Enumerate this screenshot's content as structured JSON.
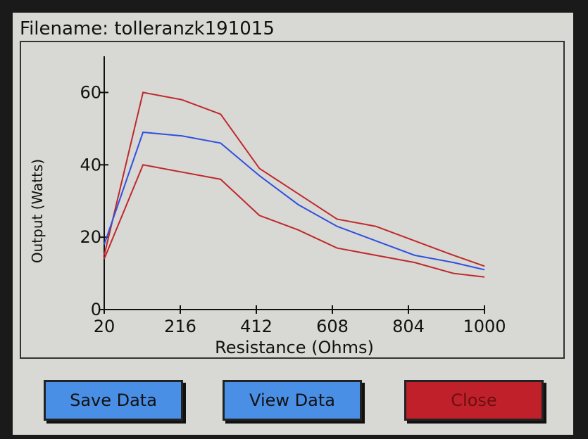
{
  "header": {
    "title": "Filename: tolleranzk191015"
  },
  "chart_data": {
    "type": "line",
    "x_label": "Resistance (Ohms)",
    "y_label": "Output (Watts)",
    "x": [
      20,
      120,
      220,
      320,
      420,
      520,
      620,
      720,
      820,
      920,
      1000
    ],
    "series": [
      {
        "color": "#c0282c",
        "values": [
          15,
          60,
          58,
          54,
          39,
          32,
          25,
          23,
          19,
          15,
          12
        ]
      },
      {
        "color": "#3050e0",
        "values": [
          18,
          49,
          48,
          46,
          37,
          29,
          23,
          19,
          15,
          13,
          11
        ]
      },
      {
        "color": "#c0282c",
        "values": [
          14,
          40,
          38,
          36,
          26,
          22,
          17,
          15,
          13,
          10,
          9
        ]
      }
    ],
    "xlim": [
      20,
      1000
    ],
    "xticks": [
      20,
      216,
      412,
      608,
      804,
      1000
    ],
    "ylim": [
      0,
      70
    ],
    "yticks": [
      0,
      20,
      40,
      60
    ]
  },
  "buttons": [
    "Save Data",
    "View Data",
    "Close"
  ]
}
